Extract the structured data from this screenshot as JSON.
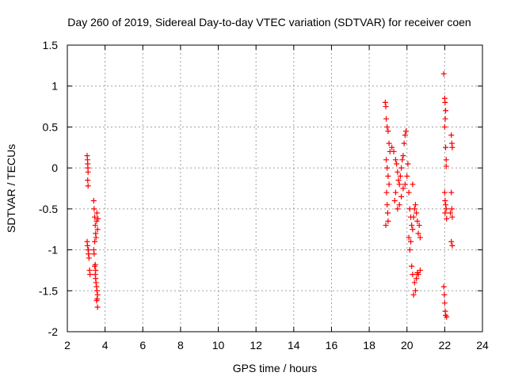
{
  "chart_data": {
    "type": "scatter",
    "title": "Day 260 of 2019, Sidereal Day-to-day VTEC variation (SDTVAR) for receiver coen",
    "xlabel": "GPS time / hours",
    "ylabel": "SDTVAR / TECUs",
    "xlim": [
      2,
      24
    ],
    "ylim": [
      -2,
      1.5
    ],
    "xticks": [
      "2",
      "4",
      "6",
      "8",
      "10",
      "12",
      "14",
      "16",
      "18",
      "20",
      "22",
      "24"
    ],
    "yticks": [
      "1.5",
      "1",
      "0.5",
      "0",
      "-0.5",
      "-1",
      "-1.5",
      "-2"
    ],
    "grid": true,
    "marker": "+",
    "marker_color": "#ff0000",
    "series": [
      {
        "name": "SDTVAR",
        "points": [
          [
            3.05,
            0.15
          ],
          [
            3.07,
            0.1
          ],
          [
            3.08,
            0.05
          ],
          [
            3.09,
            0.0
          ],
          [
            3.1,
            -0.05
          ],
          [
            3.08,
            -0.15
          ],
          [
            3.1,
            -0.22
          ],
          [
            3.05,
            -0.9
          ],
          [
            3.07,
            -0.95
          ],
          [
            3.1,
            -1.0
          ],
          [
            3.12,
            -1.05
          ],
          [
            3.15,
            -1.1
          ],
          [
            3.18,
            -1.25
          ],
          [
            3.2,
            -1.3
          ],
          [
            3.12,
            -1.0
          ],
          [
            3.4,
            -0.4
          ],
          [
            3.42,
            -0.5
          ],
          [
            3.45,
            -0.6
          ],
          [
            3.48,
            -0.7
          ],
          [
            3.5,
            -0.8
          ],
          [
            3.45,
            -0.9
          ],
          [
            3.4,
            -1.0
          ],
          [
            3.42,
            -1.05
          ],
          [
            3.45,
            -1.2
          ],
          [
            3.48,
            -1.3
          ],
          [
            3.5,
            -1.35
          ],
          [
            3.52,
            -1.4
          ],
          [
            3.55,
            -1.45
          ],
          [
            3.57,
            -1.5
          ],
          [
            3.6,
            -1.55
          ],
          [
            3.58,
            -1.6
          ],
          [
            3.6,
            -1.7
          ],
          [
            3.55,
            -0.65
          ],
          [
            3.57,
            -0.55
          ],
          [
            3.52,
            -0.85
          ],
          [
            3.5,
            -1.25
          ],
          [
            3.48,
            -1.18
          ],
          [
            3.55,
            -1.62
          ],
          [
            3.62,
            -0.62
          ],
          [
            3.6,
            -0.75
          ],
          [
            18.85,
            0.8
          ],
          [
            18.88,
            0.75
          ],
          [
            18.9,
            0.6
          ],
          [
            18.95,
            0.5
          ],
          [
            19.0,
            0.45
          ],
          [
            19.05,
            0.3
          ],
          [
            19.1,
            0.2
          ],
          [
            18.9,
            0.1
          ],
          [
            18.95,
            0.0
          ],
          [
            19.0,
            -0.1
          ],
          [
            19.05,
            -0.2
          ],
          [
            18.92,
            -0.3
          ],
          [
            18.95,
            -0.45
          ],
          [
            18.98,
            -0.55
          ],
          [
            19.0,
            -0.65
          ],
          [
            18.88,
            -0.7
          ],
          [
            19.2,
            0.25
          ],
          [
            19.3,
            0.2
          ],
          [
            19.4,
            0.1
          ],
          [
            19.45,
            0.05
          ],
          [
            19.5,
            -0.05
          ],
          [
            19.55,
            -0.15
          ],
          [
            19.6,
            -0.2
          ],
          [
            19.65,
            -0.1
          ],
          [
            19.7,
            0.0
          ],
          [
            19.75,
            0.1
          ],
          [
            19.8,
            0.15
          ],
          [
            19.85,
            0.3
          ],
          [
            19.9,
            0.4
          ],
          [
            19.95,
            0.45
          ],
          [
            19.4,
            -0.3
          ],
          [
            19.35,
            -0.4
          ],
          [
            19.5,
            -0.5
          ],
          [
            19.6,
            -0.45
          ],
          [
            19.7,
            -0.35
          ],
          [
            19.8,
            -0.25
          ],
          [
            19.9,
            -0.2
          ],
          [
            20.0,
            -0.1
          ],
          [
            20.05,
            0.05
          ],
          [
            20.1,
            -0.3
          ],
          [
            20.15,
            -0.5
          ],
          [
            20.2,
            -0.6
          ],
          [
            20.25,
            -0.7
          ],
          [
            20.3,
            -0.75
          ],
          [
            20.35,
            -0.6
          ],
          [
            20.4,
            -0.5
          ],
          [
            20.45,
            -0.45
          ],
          [
            20.5,
            -0.55
          ],
          [
            20.55,
            -0.65
          ],
          [
            20.6,
            -0.8
          ],
          [
            20.2,
            -0.9
          ],
          [
            20.15,
            -1.0
          ],
          [
            20.1,
            -0.85
          ],
          [
            20.3,
            -1.3
          ],
          [
            20.4,
            -1.4
          ],
          [
            20.45,
            -1.5
          ],
          [
            20.5,
            -1.35
          ],
          [
            20.6,
            -1.3
          ],
          [
            20.7,
            -1.25
          ],
          [
            20.35,
            -1.55
          ],
          [
            20.25,
            -1.2
          ],
          [
            20.55,
            -1.28
          ],
          [
            20.65,
            -0.7
          ],
          [
            20.7,
            -0.85
          ],
          [
            20.3,
            -0.2
          ],
          [
            21.95,
            1.15
          ],
          [
            22.0,
            0.85
          ],
          [
            22.02,
            0.8
          ],
          [
            22.05,
            0.7
          ],
          [
            22.03,
            0.6
          ],
          [
            22.0,
            0.5
          ],
          [
            22.05,
            0.25
          ],
          [
            22.08,
            0.1
          ],
          [
            22.0,
            -0.3
          ],
          [
            22.02,
            -0.4
          ],
          [
            22.05,
            -0.45
          ],
          [
            22.08,
            -0.5
          ],
          [
            21.95,
            -1.45
          ],
          [
            21.98,
            -1.55
          ],
          [
            22.0,
            -1.65
          ],
          [
            22.03,
            -1.75
          ],
          [
            22.05,
            -1.8
          ],
          [
            22.1,
            -1.82
          ],
          [
            22.35,
            0.4
          ],
          [
            22.38,
            0.3
          ],
          [
            22.4,
            0.25
          ],
          [
            22.35,
            -0.3
          ],
          [
            22.38,
            -0.5
          ],
          [
            22.4,
            -0.6
          ],
          [
            22.35,
            -0.9
          ],
          [
            22.4,
            -0.95
          ],
          [
            22.08,
            0.02
          ],
          [
            22.02,
            -0.55
          ],
          [
            22.1,
            -0.62
          ],
          [
            22.3,
            -0.55
          ]
        ]
      }
    ]
  }
}
